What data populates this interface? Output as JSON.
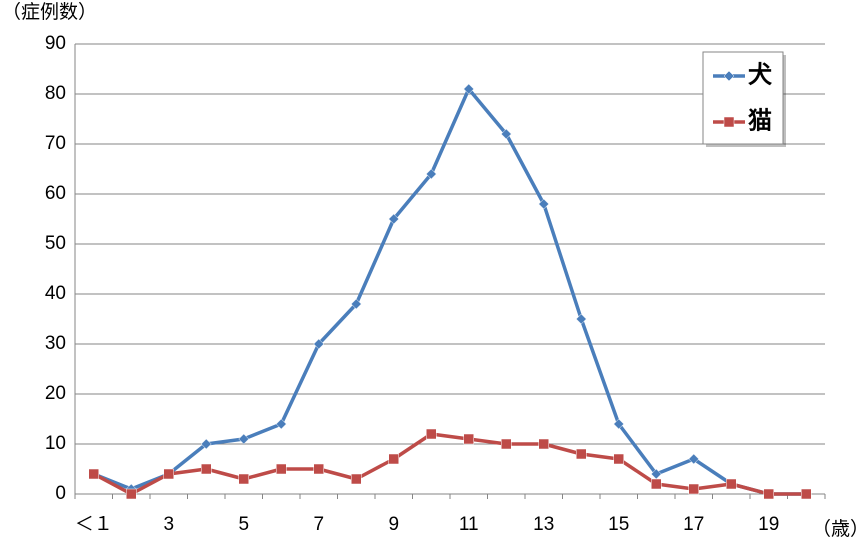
{
  "chart_data": {
    "type": "line",
    "y_label": "（症例数）",
    "x_label": "（歳）",
    "categories": [
      "＜１",
      null,
      "3",
      null,
      "5",
      null,
      "7",
      null,
      "9",
      null,
      "11",
      null,
      "13",
      null,
      "15",
      null,
      "17",
      null,
      "19",
      null
    ],
    "series": [
      {
        "name": "犬",
        "color": "#4a7ebb",
        "marker": "diamond",
        "values": [
          4,
          1,
          4,
          10,
          11,
          14,
          30,
          38,
          55,
          64,
          81,
          72,
          58,
          35,
          14,
          4,
          7,
          2,
          0,
          0
        ]
      },
      {
        "name": "猫",
        "color": "#be4b48",
        "marker": "square",
        "values": [
          4,
          0,
          4,
          5,
          3,
          5,
          5,
          3,
          7,
          12,
          11,
          10,
          10,
          8,
          7,
          2,
          1,
          2,
          0,
          0
        ]
      }
    ],
    "ylim": [
      0,
      90
    ],
    "yticks": [
      0,
      10,
      20,
      30,
      40,
      50,
      60,
      70,
      80,
      90
    ],
    "grid": true,
    "legend": "top-right"
  }
}
